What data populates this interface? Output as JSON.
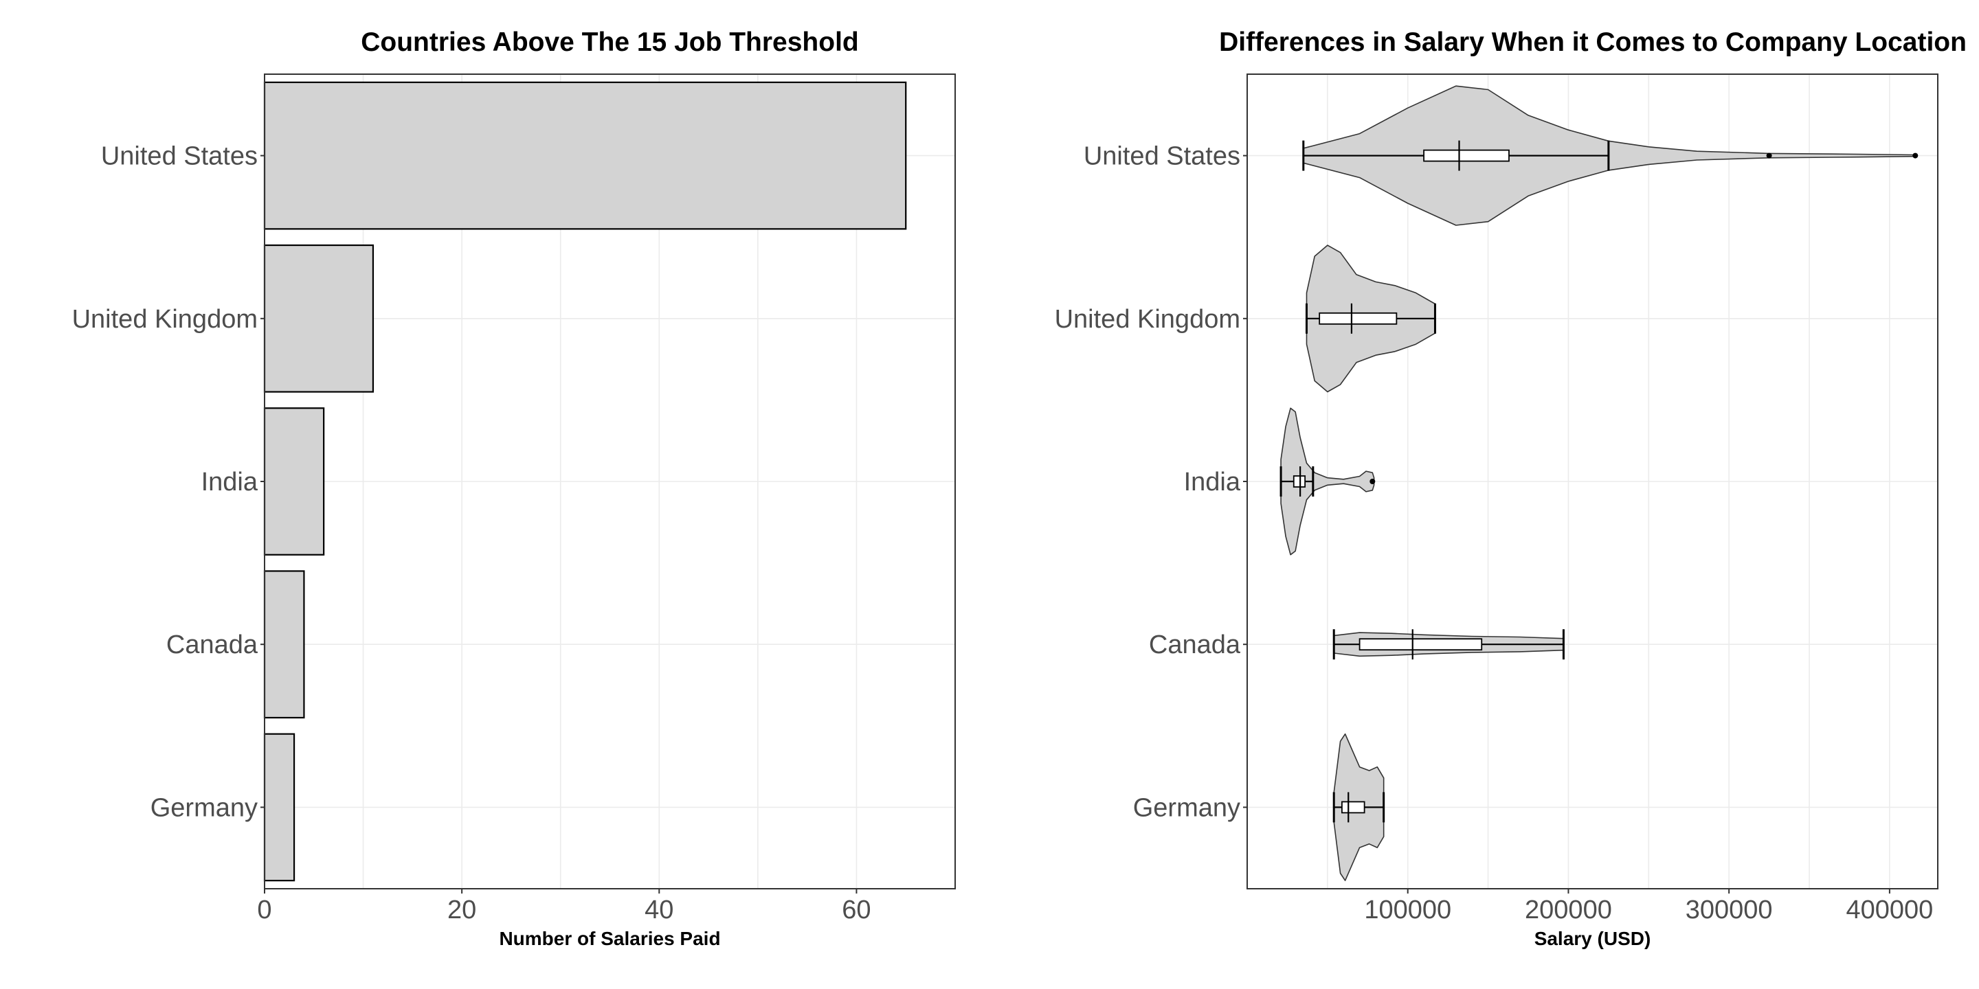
{
  "chart_data": [
    {
      "type": "bar",
      "orientation": "horizontal",
      "title": "Countries Above The 15 Job Threshold",
      "xlabel": "Number of Salaries Paid",
      "ylabel": "",
      "categories": [
        "United States",
        "United Kingdom",
        "India",
        "Canada",
        "Germany"
      ],
      "values": [
        65,
        11,
        6,
        4,
        3
      ],
      "xlim": [
        0,
        70
      ],
      "xticks": [
        0,
        20,
        40,
        60
      ],
      "xtick_labels": [
        "0",
        "20",
        "40",
        "60"
      ],
      "grid": true,
      "bar_fill": "#d3d3d3",
      "bar_stroke": "#000000"
    },
    {
      "type": "violin",
      "orientation": "horizontal",
      "title": "Differences in Salary When it Comes to Company Location",
      "xlabel": "Salary (USD)",
      "ylabel": "",
      "categories": [
        "United States",
        "United Kingdom",
        "India",
        "Canada",
        "Germany"
      ],
      "xlim": [
        0,
        430000
      ],
      "xticks": [
        100000,
        200000,
        300000,
        400000
      ],
      "xtick_labels": [
        "100000",
        "200000",
        "300000",
        "400000"
      ],
      "grid": true,
      "violin_fill": "#d3d3d3",
      "series": [
        {
          "category": "United States",
          "min": 35000,
          "q1": 110000,
          "median": 132000,
          "q3": 163000,
          "max": 225000,
          "outliers": [
            325000,
            416000
          ],
          "density": [
            [
              35000,
              0.1
            ],
            [
              70000,
              0.3
            ],
            [
              100000,
              0.65
            ],
            [
              130000,
              0.95
            ],
            [
              150000,
              0.9
            ],
            [
              175000,
              0.55
            ],
            [
              200000,
              0.35
            ],
            [
              225000,
              0.2
            ],
            [
              250000,
              0.12
            ],
            [
              280000,
              0.06
            ],
            [
              325000,
              0.03
            ],
            [
              380000,
              0.02
            ],
            [
              416000,
              0.01
            ]
          ]
        },
        {
          "category": "United Kingdom",
          "min": 37000,
          "q1": 45000,
          "median": 65000,
          "q3": 93000,
          "max": 117000,
          "outliers": [],
          "density": [
            [
              37000,
              0.35
            ],
            [
              42000,
              0.85
            ],
            [
              50000,
              1.0
            ],
            [
              58000,
              0.9
            ],
            [
              68000,
              0.6
            ],
            [
              80000,
              0.5
            ],
            [
              92000,
              0.45
            ],
            [
              105000,
              0.35
            ],
            [
              117000,
              0.2
            ]
          ]
        },
        {
          "category": "India",
          "min": 21000,
          "q1": 29000,
          "median": 33000,
          "q3": 36000,
          "max": 41000,
          "outliers": [
            78000
          ],
          "density": [
            [
              21000,
              0.3
            ],
            [
              24000,
              0.75
            ],
            [
              27000,
              1.0
            ],
            [
              30000,
              0.95
            ],
            [
              33000,
              0.6
            ],
            [
              37000,
              0.25
            ],
            [
              42000,
              0.12
            ],
            [
              50000,
              0.05
            ],
            [
              60000,
              0.03
            ],
            [
              70000,
              0.07
            ],
            [
              74000,
              0.14
            ],
            [
              78000,
              0.12
            ],
            [
              79000,
              0.05
            ]
          ]
        },
        {
          "category": "Canada",
          "min": 54000,
          "q1": 70000,
          "median": 103000,
          "q3": 146000,
          "max": 197000,
          "outliers": [],
          "density": [
            [
              54000,
              0.12
            ],
            [
              70000,
              0.16
            ],
            [
              90000,
              0.15
            ],
            [
              110000,
              0.13
            ],
            [
              140000,
              0.11
            ],
            [
              170000,
              0.1
            ],
            [
              197000,
              0.08
            ]
          ]
        },
        {
          "category": "Germany",
          "min": 54000,
          "q1": 59000,
          "median": 63000,
          "q3": 73000,
          "max": 85000,
          "outliers": [],
          "density": [
            [
              54000,
              0.2
            ],
            [
              56000,
              0.55
            ],
            [
              58000,
              0.9
            ],
            [
              61000,
              1.0
            ],
            [
              65000,
              0.8
            ],
            [
              70000,
              0.55
            ],
            [
              76000,
              0.5
            ],
            [
              81000,
              0.55
            ],
            [
              85000,
              0.4
            ]
          ]
        }
      ]
    }
  ]
}
